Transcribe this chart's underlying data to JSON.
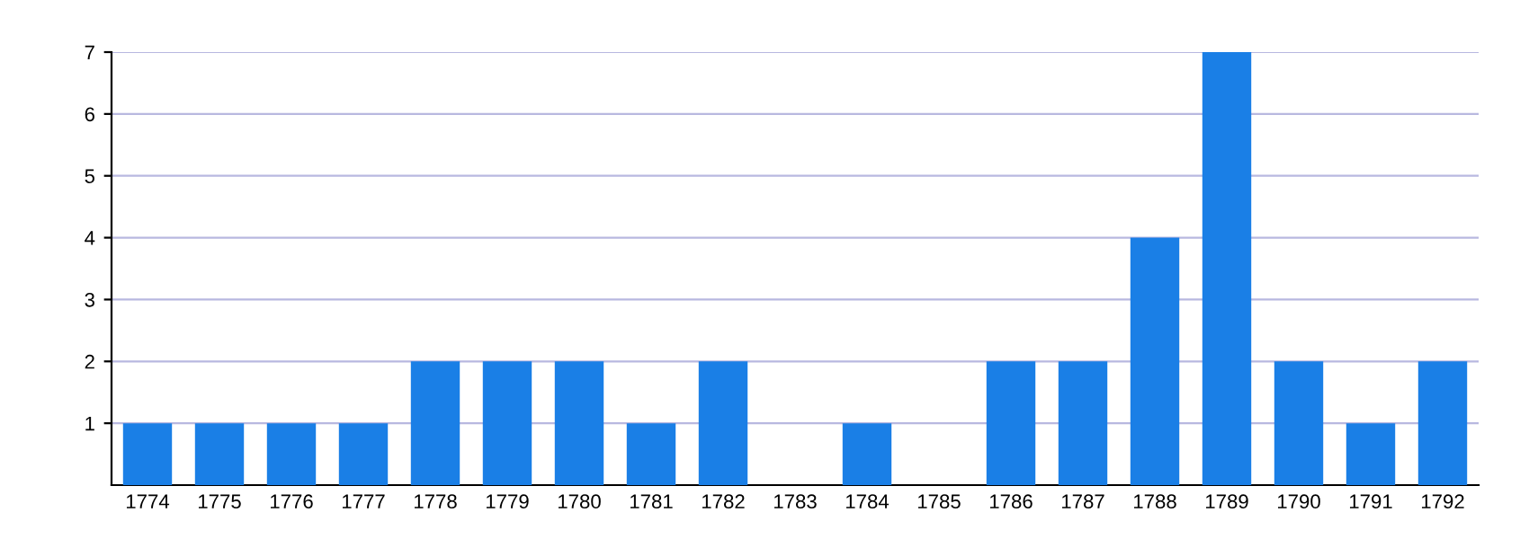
{
  "chart_data": {
    "type": "bar",
    "categories": [
      "1774",
      "1775",
      "1776",
      "1777",
      "1778",
      "1779",
      "1780",
      "1781",
      "1782",
      "1783",
      "1784",
      "1785",
      "1786",
      "1787",
      "1788",
      "1789",
      "1790",
      "1791",
      "1792"
    ],
    "values": [
      1,
      1,
      1,
      1,
      2,
      2,
      2,
      1,
      2,
      0,
      1,
      0,
      2,
      2,
      4,
      7,
      2,
      1,
      2
    ],
    "color": "#1a7fe6",
    "ylim": [
      0,
      7
    ],
    "yticks": [
      1,
      2,
      3,
      4,
      5,
      6,
      7
    ],
    "grid": "y"
  }
}
